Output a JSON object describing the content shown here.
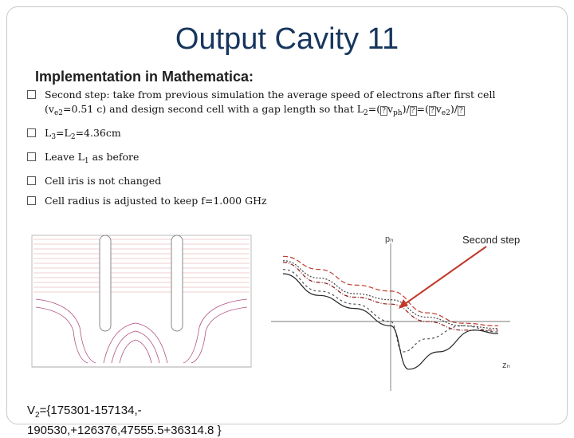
{
  "slide": {
    "title": "Output Cavity 11",
    "subheading": "Implementation in Mathematica:",
    "bullets": [
      {
        "parts": [
          "Second step: take from previous simulation the average speed of electrons after first cell (v",
          "e2",
          "=0.51 c) and design second cell with a gap length so that L",
          "2",
          "=(",
          "v",
          "ph",
          ")/",
          "=(",
          "v",
          "e2",
          ")/"
        ]
      },
      {
        "parts": [
          "L",
          "3",
          "=L",
          "2",
          "=4.36cm"
        ]
      },
      {
        "parts": [
          "Leave L",
          "1",
          " as before"
        ]
      },
      {
        "parts": [
          "Cell iris is not changed"
        ]
      },
      {
        "parts": [
          "Cell radius is adjusted to keep f=1.000 GHz"
        ]
      }
    ],
    "step_label": "Second step",
    "axis_top_label": "pₙ",
    "axis_right_label": "zₙ",
    "v2_line1": "V",
    "v2_sub": "2",
    "v2_rest": "={175301-157134,-",
    "v2_line2": "190530,+126376,47555.5+36314.8 }"
  },
  "chart_data": {
    "type": "line",
    "title": "",
    "xlabel": "zₙ",
    "ylabel": "pₙ",
    "series": [
      {
        "values": [
          [
            -0.9,
            0.75
          ],
          [
            -0.6,
            0.6
          ],
          [
            -0.3,
            0.42
          ],
          [
            0.0,
            0.35
          ],
          [
            0.3,
            0.1
          ],
          [
            0.6,
            -0.02
          ],
          [
            0.9,
            -0.05
          ]
        ]
      },
      {
        "values": [
          [
            -0.9,
            0.7
          ],
          [
            -0.6,
            0.5
          ],
          [
            -0.3,
            0.32
          ],
          [
            0.0,
            0.25
          ],
          [
            0.3,
            0.05
          ],
          [
            0.6,
            -0.05
          ],
          [
            0.9,
            -0.08
          ]
        ]
      },
      {
        "values": [
          [
            -0.9,
            0.68
          ],
          [
            -0.6,
            0.45
          ],
          [
            -0.3,
            0.28
          ],
          [
            0.0,
            0.2
          ],
          [
            0.3,
            0.0
          ],
          [
            0.6,
            -0.1
          ],
          [
            0.9,
            -0.1
          ]
        ]
      },
      {
        "values": [
          [
            -0.9,
            0.6
          ],
          [
            -0.6,
            0.35
          ],
          [
            -0.3,
            0.2
          ],
          [
            0.0,
            0.0
          ],
          [
            0.1,
            -0.35
          ],
          [
            0.3,
            -0.2
          ],
          [
            0.6,
            -0.05
          ],
          [
            0.9,
            -0.12
          ]
        ]
      },
      {
        "values": [
          [
            -0.9,
            0.55
          ],
          [
            -0.6,
            0.3
          ],
          [
            -0.3,
            0.15
          ],
          [
            0.0,
            -0.05
          ],
          [
            0.15,
            -0.55
          ],
          [
            0.4,
            -0.35
          ],
          [
            0.7,
            -0.1
          ],
          [
            0.9,
            -0.14
          ]
        ]
      }
    ],
    "colors": [
      "#c0392b",
      "#444444",
      "#8b1a1a",
      "#555555",
      "#222222"
    ]
  }
}
